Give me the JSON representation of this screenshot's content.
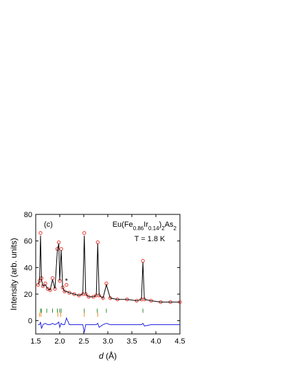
{
  "chart_data": {
    "type": "diffraction",
    "panel_label": "(c)",
    "title_parts": [
      {
        "text": "Eu(Fe",
        "sub": false
      },
      {
        "text": "0.86",
        "sub": true
      },
      {
        "text": "Ir",
        "sub": false
      },
      {
        "text": "0.14",
        "sub": true
      },
      {
        "text": ")",
        "sub": false
      },
      {
        "text": "2",
        "sub": true
      },
      {
        "text": "As",
        "sub": false
      },
      {
        "text": "2",
        "sub": true
      }
    ],
    "subtitle": "T = 1.8 K",
    "ylabel": "Intensity (arb. units)",
    "xlabel_parts": [
      {
        "text": "d",
        "italic": true
      },
      {
        "text": " (Å)",
        "italic": false
      }
    ],
    "x": [
      1.55,
      1.58,
      1.6,
      1.62,
      1.65,
      1.7,
      1.75,
      1.8,
      1.85,
      1.9,
      1.95,
      1.98,
      2.0,
      2.03,
      2.06,
      2.1,
      2.14,
      2.2,
      2.3,
      2.4,
      2.48,
      2.51,
      2.54,
      2.6,
      2.7,
      2.76,
      2.79,
      2.82,
      2.9,
      2.97,
      3.05,
      3.2,
      3.4,
      3.6,
      3.7,
      3.73,
      3.76,
      3.9,
      4.1,
      4.3,
      4.5
    ],
    "series": [
      {
        "name": "observed",
        "color": "#e8231a",
        "style": "circles",
        "values": [
          27,
          30,
          66,
          32,
          26,
          28,
          24,
          23,
          32,
          24,
          54,
          59,
          30,
          54,
          25,
          22,
          27,
          21,
          20,
          19,
          20,
          66,
          20,
          18,
          18,
          19,
          59,
          19,
          17,
          28,
          17,
          16,
          16,
          15,
          16,
          45,
          16,
          15,
          14,
          14,
          14
        ]
      },
      {
        "name": "calculated",
        "color": "#000000",
        "style": "line",
        "values": [
          27,
          30,
          64,
          31,
          26,
          27,
          24,
          23,
          31,
          24,
          53,
          58,
          30,
          53,
          25,
          22,
          22,
          21,
          20,
          19,
          20,
          64,
          20,
          18,
          18,
          19,
          58,
          19,
          17,
          27,
          17,
          16,
          16,
          15,
          16,
          44,
          16,
          15,
          14,
          14,
          14
        ]
      },
      {
        "name": "difference",
        "color": "#2323e0",
        "style": "line",
        "values": [
          -3,
          -3,
          -1,
          -6,
          -3,
          -2,
          -3,
          -3,
          -2,
          -3,
          -2,
          -1,
          -5,
          -2,
          -3,
          -3,
          2,
          -3,
          -3,
          -3,
          -3,
          -9,
          -3,
          -3,
          -3,
          -3,
          -2,
          -5,
          -3,
          -2,
          -3,
          -3,
          -3,
          -3,
          -3,
          -2,
          -4,
          -3,
          -3,
          -3,
          -3
        ]
      }
    ],
    "reflection_rows": [
      {
        "color": "#2e8b2e",
        "y": 7.5,
        "positions": [
          1.6,
          1.62,
          1.73,
          1.85,
          1.95,
          2.0,
          2.03,
          2.51,
          2.78,
          2.97,
          3.73
        ]
      },
      {
        "color": "#f08c1e",
        "y": 4.5,
        "positions": [
          1.58,
          1.61,
          1.96,
          2.02,
          2.51,
          2.79
        ]
      }
    ],
    "annotation": {
      "text": "*",
      "x": 2.14,
      "y": 30
    },
    "xlim": [
      1.5,
      4.5
    ],
    "xticks": [
      1.5,
      {
        "value": 2,
        "label": "2.0"
      },
      2.5,
      {
        "value": 3,
        "label": "3.0"
      },
      3.5,
      {
        "value": 4,
        "label": "4.0"
      },
      4.5
    ],
    "ylim": [
      -10,
      80
    ],
    "yticks": [
      0,
      20,
      40,
      60,
      80
    ]
  }
}
